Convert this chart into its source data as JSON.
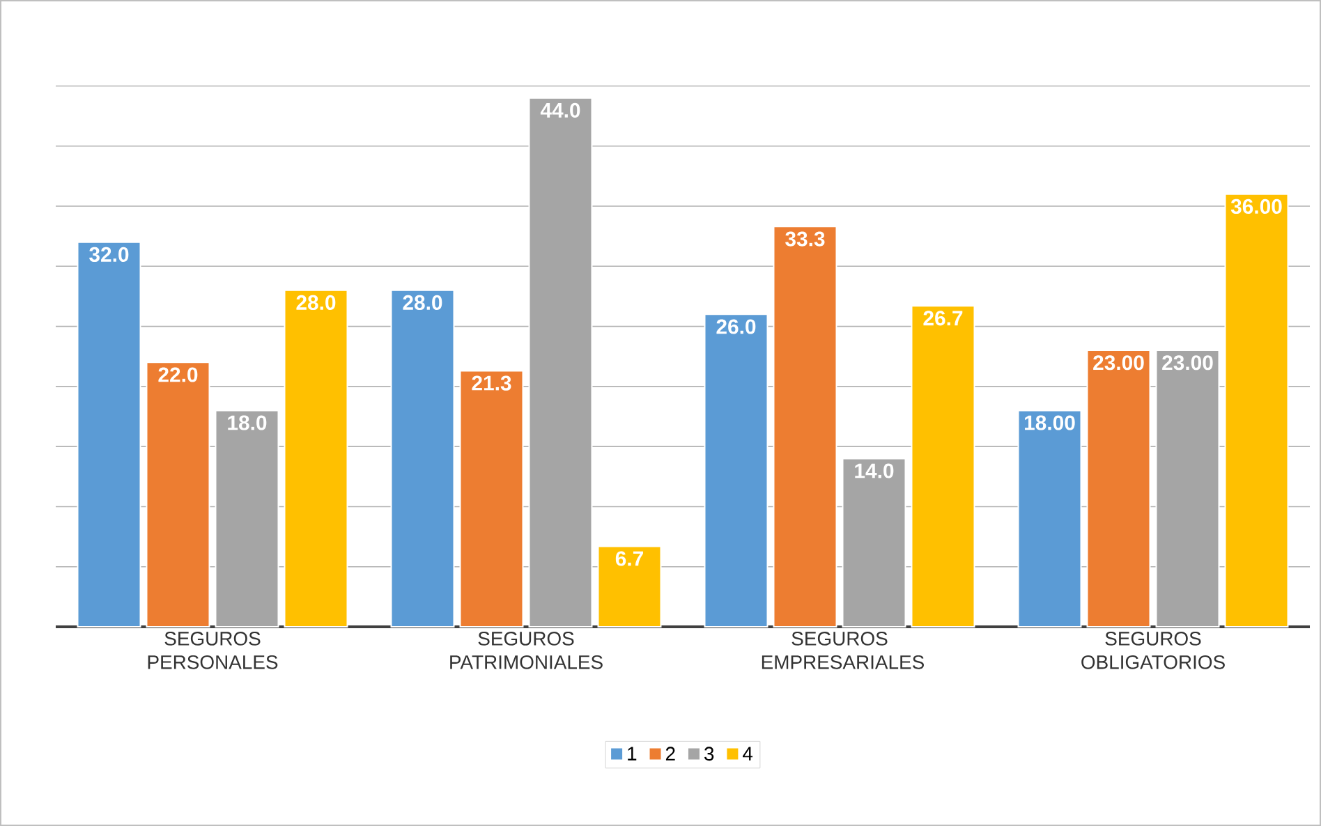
{
  "chart_data": {
    "type": "bar",
    "categories": [
      "SEGUROS PERSONALES",
      "SEGUROS PATRIMONIALES",
      "SEGUROS EMPRESARIALES",
      "SEGUROS OBLIGATORIOS"
    ],
    "series": [
      {
        "name": "1",
        "color": "#5b9bd5",
        "values": [
          32.0,
          28.0,
          26.0,
          18.0
        ],
        "value_labels": [
          "32.0",
          "28.0",
          "26.0",
          "18.00"
        ]
      },
      {
        "name": "2",
        "color": "#ed7d31",
        "values": [
          22.0,
          21.3,
          33.3,
          23.0
        ],
        "value_labels": [
          "22.0",
          "21.3",
          "33.3",
          "23.00"
        ]
      },
      {
        "name": "3",
        "color": "#a5a5a5",
        "values": [
          18.0,
          44.0,
          14.0,
          23.0
        ],
        "value_labels": [
          "18.0",
          "44.0",
          "14.0",
          "23.00"
        ]
      },
      {
        "name": "4",
        "color": "#ffc000",
        "values": [
          28.0,
          6.7,
          26.7,
          36.0
        ],
        "value_labels": [
          "28.0",
          "6.7",
          "26.7",
          "36.00"
        ]
      }
    ],
    "tick_labels": "x",
    "grid": "y",
    "legend": "bottom"
  }
}
